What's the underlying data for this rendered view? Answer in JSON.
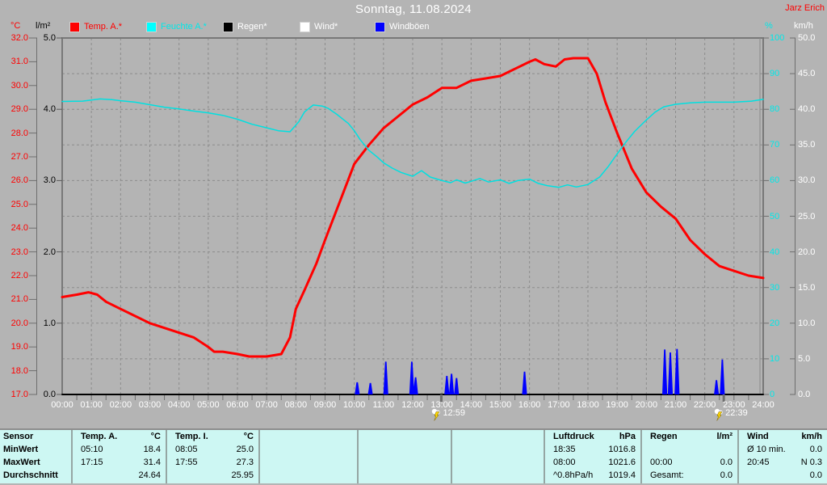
{
  "window": {
    "title": "Sonntag, 11.08.2024",
    "station": "Jarz Erich"
  },
  "axes_units": {
    "temp": "°C",
    "rain": "l/m²",
    "humidity": "%",
    "wind": "km/h"
  },
  "legend": [
    {
      "label": "Temp. A.*",
      "swatch": "#ff0000",
      "text_color": "#ff0000"
    },
    {
      "label": "Feuchte A.*",
      "swatch": "#00ffff",
      "text_color": "#00e8e8"
    },
    {
      "label": "Regen*",
      "swatch": "#000000",
      "text_color": "#ffffff"
    },
    {
      "label": "Wind*",
      "swatch": "#ffffff",
      "text_color": "#ffffff"
    },
    {
      "label": "Windböen",
      "swatch": "#0000ff",
      "text_color": "#ffffff"
    }
  ],
  "chart_data": {
    "type": "line",
    "title": "Sonntag, 11.08.2024",
    "x_range_hours": [
      0,
      24
    ],
    "grid": true,
    "axes": {
      "temp_c": {
        "unit": "°C",
        "color": "#ff0000",
        "min": 17,
        "max": 32,
        "ticks": [
          "32.0",
          "31.0",
          "30.0",
          "29.0",
          "28.0",
          "27.0",
          "26.0",
          "25.0",
          "24.0",
          "23.0",
          "22.0",
          "21.0",
          "20.0",
          "19.0",
          "18.0",
          "17.0"
        ]
      },
      "rain_lm2": {
        "unit": "l/m²",
        "color": "#000000",
        "min": 0,
        "max": 5,
        "ticks": [
          "5.0",
          "4.0",
          "3.0",
          "2.0",
          "1.0",
          "0.0"
        ]
      },
      "humidity_pct": {
        "unit": "%",
        "color": "#00e8e8",
        "min": 0,
        "max": 100,
        "ticks": [
          "100",
          "90",
          "80",
          "70",
          "60",
          "50",
          "40",
          "30",
          "20",
          "10",
          "0"
        ]
      },
      "wind_kmh": {
        "unit": "km/h",
        "color": "#ffffff",
        "min": 0,
        "max": 50,
        "ticks": [
          "50.0",
          "45.0",
          "40.0",
          "35.0",
          "30.0",
          "25.0",
          "20.0",
          "15.0",
          "10.0",
          "5.0",
          "0.0"
        ]
      }
    },
    "x_ticks": [
      "00:00",
      "01:00",
      "02:00",
      "03:00",
      "04:00",
      "05:00",
      "06:00",
      "07:00",
      "08:00",
      "09:00",
      "10:00",
      "11:00",
      "12:00",
      "13:00",
      "14:00",
      "15:00",
      "16:00",
      "17:00",
      "18:00",
      "19:00",
      "20:00",
      "21:00",
      "22:00",
      "23:00",
      "24:00"
    ],
    "series": [
      {
        "name": "Temp. A.*",
        "axis": "temp_c",
        "color": "#ff0000",
        "width": 3,
        "points": [
          [
            0,
            21.1
          ],
          [
            0.5,
            21.2
          ],
          [
            0.9,
            21.3
          ],
          [
            1.2,
            21.2
          ],
          [
            1.5,
            20.9
          ],
          [
            2,
            20.6
          ],
          [
            2.5,
            20.3
          ],
          [
            3,
            20.0
          ],
          [
            3.5,
            19.8
          ],
          [
            4,
            19.6
          ],
          [
            4.5,
            19.4
          ],
          [
            5,
            19.0
          ],
          [
            5.2,
            18.8
          ],
          [
            5.5,
            18.8
          ],
          [
            6,
            18.7
          ],
          [
            6.4,
            18.6
          ],
          [
            7,
            18.6
          ],
          [
            7.5,
            18.7
          ],
          [
            7.8,
            19.4
          ],
          [
            8,
            20.6
          ],
          [
            8.3,
            21.4
          ],
          [
            8.7,
            22.5
          ],
          [
            9,
            23.5
          ],
          [
            9.5,
            25.1
          ],
          [
            10,
            26.7
          ],
          [
            10.5,
            27.5
          ],
          [
            11,
            28.2
          ],
          [
            11.5,
            28.7
          ],
          [
            12,
            29.2
          ],
          [
            12.5,
            29.5
          ],
          [
            13,
            29.9
          ],
          [
            13.5,
            29.9
          ],
          [
            14,
            30.2
          ],
          [
            14.5,
            30.3
          ],
          [
            15,
            30.4
          ],
          [
            15.5,
            30.7
          ],
          [
            16,
            31.0
          ],
          [
            16.2,
            31.1
          ],
          [
            16.5,
            30.9
          ],
          [
            16.9,
            30.8
          ],
          [
            17.2,
            31.1
          ],
          [
            17.5,
            31.15
          ],
          [
            18,
            31.15
          ],
          [
            18.3,
            30.5
          ],
          [
            18.6,
            29.3
          ],
          [
            19,
            28.0
          ],
          [
            19.5,
            26.5
          ],
          [
            20,
            25.5
          ],
          [
            20.5,
            24.9
          ],
          [
            21,
            24.4
          ],
          [
            21.5,
            23.5
          ],
          [
            22,
            22.9
          ],
          [
            22.5,
            22.4
          ],
          [
            23,
            22.2
          ],
          [
            23.5,
            22.0
          ],
          [
            24,
            21.9
          ]
        ]
      },
      {
        "name": "Feuchte A.*",
        "axis": "humidity_pct",
        "color": "#00e0e0",
        "width": 1.5,
        "points": [
          [
            0,
            82.2
          ],
          [
            0.7,
            82.3
          ],
          [
            1.3,
            82.9
          ],
          [
            1.7,
            82.7
          ],
          [
            2,
            82.4
          ],
          [
            2.5,
            82
          ],
          [
            3,
            81.3
          ],
          [
            3.5,
            80.6
          ],
          [
            4,
            80.1
          ],
          [
            4.5,
            79.5
          ],
          [
            5,
            79
          ],
          [
            5.5,
            78.3
          ],
          [
            6,
            77.2
          ],
          [
            6.5,
            75.8
          ],
          [
            7,
            74.8
          ],
          [
            7.4,
            74
          ],
          [
            7.8,
            73.7
          ],
          [
            8.1,
            76.5
          ],
          [
            8.3,
            79.3
          ],
          [
            8.6,
            81.2
          ],
          [
            8.9,
            80.9
          ],
          [
            9.1,
            80.3
          ],
          [
            9.4,
            78.6
          ],
          [
            9.8,
            76
          ],
          [
            10,
            74
          ],
          [
            10.2,
            71.5
          ],
          [
            10.5,
            68.5
          ],
          [
            10.8,
            66.5
          ],
          [
            11,
            65
          ],
          [
            11.3,
            63.5
          ],
          [
            11.6,
            62.3
          ],
          [
            12,
            61.2
          ],
          [
            12.3,
            62.8
          ],
          [
            12.6,
            61
          ],
          [
            13,
            60
          ],
          [
            13.3,
            59.4
          ],
          [
            13.5,
            60.2
          ],
          [
            13.8,
            59.3
          ],
          [
            14,
            59.8
          ],
          [
            14.3,
            60.6
          ],
          [
            14.6,
            59.6
          ],
          [
            15,
            60.2
          ],
          [
            15.3,
            59.2
          ],
          [
            15.6,
            60
          ],
          [
            16,
            60.4
          ],
          [
            16.3,
            59.2
          ],
          [
            16.6,
            58.6
          ],
          [
            17,
            58.1
          ],
          [
            17.3,
            58.8
          ],
          [
            17.6,
            58.2
          ],
          [
            18,
            58.9
          ],
          [
            18.4,
            61
          ],
          [
            18.7,
            64
          ],
          [
            19,
            67.5
          ],
          [
            19.3,
            70.8
          ],
          [
            19.6,
            73.8
          ],
          [
            20,
            77
          ],
          [
            20.3,
            79.2
          ],
          [
            20.6,
            80.7
          ],
          [
            21,
            81.4
          ],
          [
            21.5,
            81.8
          ],
          [
            22,
            82
          ],
          [
            23,
            82
          ],
          [
            23.6,
            82.3
          ],
          [
            24,
            82.8
          ]
        ]
      },
      {
        "name": "Wind*",
        "axis": "wind_kmh",
        "color": "#ffffff",
        "width": 1.5,
        "points": [
          [
            0,
            0
          ],
          [
            24,
            0
          ]
        ],
        "spikes": [
          [
            15.85,
            0.6
          ],
          [
            20.65,
            0.9
          ],
          [
            20.85,
            0.7
          ],
          [
            21.05,
            0.8
          ],
          [
            22.6,
            0.6
          ]
        ]
      },
      {
        "name": "Regen*",
        "axis": "rain_lm2",
        "color": "#000000",
        "width": 2,
        "points": [
          [
            0,
            0
          ],
          [
            24,
            0
          ]
        ]
      },
      {
        "name": "Windböen",
        "axis": "wind_kmh",
        "color": "#0000ff",
        "width": 1.8,
        "spikes": [
          [
            10.1,
            1.7
          ],
          [
            10.55,
            1.6
          ],
          [
            11.08,
            4.6
          ],
          [
            11.97,
            4.6
          ],
          [
            12.1,
            2.4
          ],
          [
            13.17,
            2.6
          ],
          [
            13.33,
            2.9
          ],
          [
            13.5,
            2.3
          ],
          [
            15.83,
            3.2
          ],
          [
            20.63,
            6.3
          ],
          [
            20.82,
            5.9
          ],
          [
            21.05,
            6.4
          ],
          [
            22.4,
            2.0
          ],
          [
            22.6,
            4.9
          ]
        ]
      }
    ],
    "events": [
      {
        "label": "12:59",
        "hour": 12.98
      },
      {
        "label": "22:39",
        "hour": 22.65
      }
    ]
  },
  "summary_table": {
    "row_labels": [
      "Sensor",
      "MinWert",
      "MaxWert",
      "Durchschnitt"
    ],
    "columns": [
      {
        "name": "Temp. A.",
        "unit": "°C",
        "rows": [
          [
            "05:10",
            "18.4"
          ],
          [
            "17:15",
            "31.4"
          ],
          [
            "",
            "24.64"
          ]
        ]
      },
      {
        "name": "Temp. I.",
        "unit": "°C",
        "rows": [
          [
            "08:05",
            "25.0"
          ],
          [
            "17:55",
            "27.3"
          ],
          [
            "",
            "25.95"
          ]
        ]
      },
      {
        "name": "",
        "unit": "",
        "rows": [
          [
            "",
            ""
          ],
          [
            "",
            ""
          ],
          [
            "",
            ""
          ]
        ]
      },
      {
        "name": "",
        "unit": "",
        "rows": [
          [
            "",
            ""
          ],
          [
            "",
            ""
          ],
          [
            "",
            ""
          ]
        ]
      },
      {
        "name": "",
        "unit": "",
        "rows": [
          [
            "",
            ""
          ],
          [
            "",
            ""
          ],
          [
            "",
            ""
          ]
        ]
      },
      {
        "name": "Luftdruck",
        "unit": "hPa",
        "rows": [
          [
            "18:35",
            "1016.8"
          ],
          [
            "08:00",
            "1021.6"
          ],
          [
            "^0.8hPa/h",
            "1019.4"
          ]
        ]
      },
      {
        "name": "Regen",
        "unit": "l/m²",
        "rows": [
          [
            "",
            ""
          ],
          [
            "00:00",
            "0.0"
          ],
          [
            "Gesamt:",
            "0.0"
          ]
        ]
      },
      {
        "name": "Wind",
        "unit": "km/h",
        "rows": [
          [
            "Ø 10 min.",
            "0.0"
          ],
          [
            "20:45",
            "N 0.3"
          ],
          [
            "",
            "0.0"
          ]
        ]
      }
    ]
  }
}
